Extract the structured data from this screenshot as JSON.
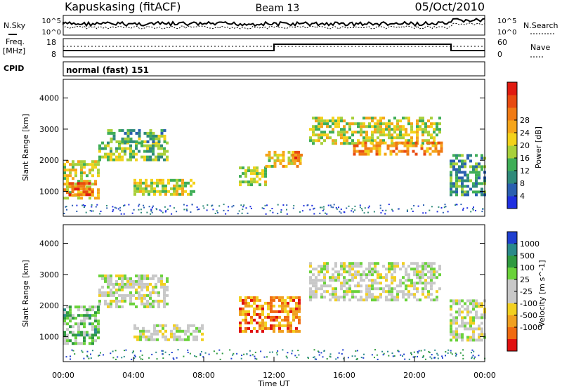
{
  "header": {
    "station": "Kapuskasing (fitACF)",
    "beam": "Beam 13",
    "date": "05/Oct/2010"
  },
  "top_panels": {
    "nsky_label": "N.Sky",
    "nsky_ticks": [
      "10^5",
      "10^0"
    ],
    "nsearch_ticks": [
      "10^5",
      "10^0"
    ],
    "nsearch_label": "N.Search",
    "freq_label_1": "Freq.",
    "freq_label_2": "[MHz]",
    "freq_ticks": [
      "18",
      "8"
    ],
    "nave_ticks": [
      "60",
      "0"
    ],
    "nave_label": "Nave",
    "cpid_label": "CPID",
    "cpid_value": "normal (fast) 151"
  },
  "chart_data": [
    {
      "type": "heatmap",
      "name": "power",
      "ylabel": "Slant Range [km]",
      "yticks": [
        "1000",
        "2000",
        "3000",
        "4000"
      ],
      "ylim": [
        200,
        4600
      ],
      "xlim": [
        0,
        24
      ],
      "colorbar_label": "Power [dB]",
      "colorbar_ticks": [
        "4",
        "8",
        "12",
        "16",
        "20",
        "24",
        "28"
      ],
      "colorbar_colors": [
        "#1f2fe0",
        "#2a5fb0",
        "#2f8a7a",
        "#3fae57",
        "#a8d03a",
        "#f3d21a",
        "#f5a51a",
        "#f07a14",
        "#e84a10",
        "#e01a10"
      ],
      "regions": [
        {
          "t0": 0.0,
          "t1": 2.0,
          "r0": 800,
          "r1": 2000,
          "level": 0.55
        },
        {
          "t0": 0.3,
          "t1": 1.7,
          "r0": 900,
          "r1": 1300,
          "level": 0.8
        },
        {
          "t0": 2.0,
          "t1": 6.0,
          "r0": 2000,
          "r1": 2600,
          "level": 0.4
        },
        {
          "t0": 2.5,
          "t1": 5.8,
          "r0": 2600,
          "r1": 3000,
          "level": 0.35
        },
        {
          "t0": 4.0,
          "t1": 7.5,
          "r0": 900,
          "r1": 1400,
          "level": 0.5
        },
        {
          "t0": 10.0,
          "t1": 11.5,
          "r0": 1200,
          "r1": 1800,
          "level": 0.45
        },
        {
          "t0": 11.5,
          "t1": 13.5,
          "r0": 1800,
          "r1": 2300,
          "level": 0.55
        },
        {
          "t0": 13.0,
          "t1": 13.5,
          "r0": 2000,
          "r1": 2300,
          "level": 0.75
        },
        {
          "t0": 14.0,
          "t1": 21.5,
          "r0": 2500,
          "r1": 3400,
          "level": 0.5
        },
        {
          "t0": 16.5,
          "t1": 21.5,
          "r0": 2200,
          "r1": 2600,
          "level": 0.7
        },
        {
          "t0": 22.0,
          "t1": 24.0,
          "r0": 900,
          "r1": 2200,
          "level": 0.3
        }
      ]
    },
    {
      "type": "heatmap",
      "name": "velocity",
      "ylabel": "Slant Range [km]",
      "yticks": [
        "1000",
        "2000",
        "3000",
        "4000"
      ],
      "ylim": [
        200,
        4600
      ],
      "xlim": [
        0,
        24
      ],
      "xticks": [
        "00:00",
        "04:00",
        "08:00",
        "12:00",
        "16:00",
        "20:00",
        "00:00"
      ],
      "xlabel": "Time UT",
      "colorbar_label": "Velocity [m s^-1]",
      "colorbar_ticks": [
        "1000",
        "500",
        "100",
        "25",
        "-25",
        "-100",
        "-500",
        "-1000"
      ],
      "colorbar_colors": [
        "#1f3fd0",
        "#2a8a8a",
        "#2f9a40",
        "#6ad23a",
        "#c8c8c8",
        "#c8c8c8",
        "#f2d020",
        "#f0a020",
        "#f06a10",
        "#e01010"
      ],
      "regions": [
        {
          "t0": 0.0,
          "t1": 2.0,
          "r0": 800,
          "r1": 2000,
          "level": 0.35
        },
        {
          "t0": 2.0,
          "t1": 6.0,
          "r0": 2000,
          "r1": 3000,
          "level": 0.5
        },
        {
          "t0": 4.0,
          "t1": 8.0,
          "r0": 900,
          "r1": 1400,
          "level": 0.5
        },
        {
          "t0": 10.0,
          "t1": 13.5,
          "r0": 1200,
          "r1": 2300,
          "level": 0.78
        },
        {
          "t0": 14.0,
          "t1": 21.5,
          "r0": 2200,
          "r1": 3400,
          "level": 0.5
        },
        {
          "t0": 22.0,
          "t1": 24.0,
          "r0": 900,
          "r1": 2200,
          "level": 0.5
        }
      ]
    }
  ]
}
